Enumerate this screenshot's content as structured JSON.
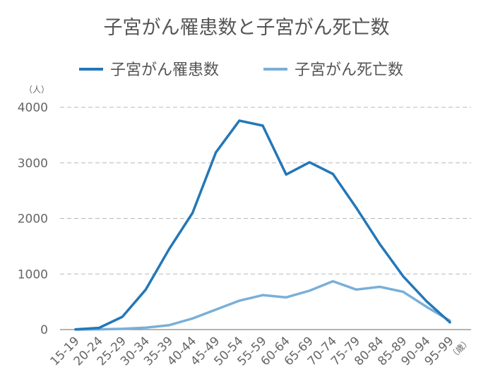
{
  "colors": {
    "series1": "#2377b8",
    "series2": "#7aafd8"
  },
  "chart_data": {
    "type": "line",
    "title": "子宮がん罹患数と子宮がん死亡数",
    "ylabel_unit": "（人）",
    "xlabel_unit": "（歳）",
    "ylim": [
      0,
      4000
    ],
    "yticks": [
      "0",
      "1000",
      "2000",
      "3000",
      "4000"
    ],
    "grid": true,
    "legend_position": "top-center",
    "categories": [
      "15-19",
      "20-24",
      "25-29",
      "30-34",
      "35-39",
      "40-44",
      "45-49",
      "50-54",
      "55-59",
      "60-64",
      "65-69",
      "70-74",
      "75-79",
      "80-84",
      "85-89",
      "90-94",
      "95-99"
    ],
    "series": [
      {
        "name": "子宮がん罹患数",
        "values": [
          5,
          30,
          230,
          720,
          1450,
          2100,
          3190,
          3760,
          3670,
          2790,
          3010,
          2800,
          2190,
          1540,
          960,
          510,
          130
        ]
      },
      {
        "name": "子宮がん死亡数",
        "values": [
          0,
          5,
          15,
          35,
          80,
          200,
          360,
          520,
          620,
          580,
          700,
          870,
          720,
          770,
          680,
          410,
          160
        ]
      }
    ]
  }
}
